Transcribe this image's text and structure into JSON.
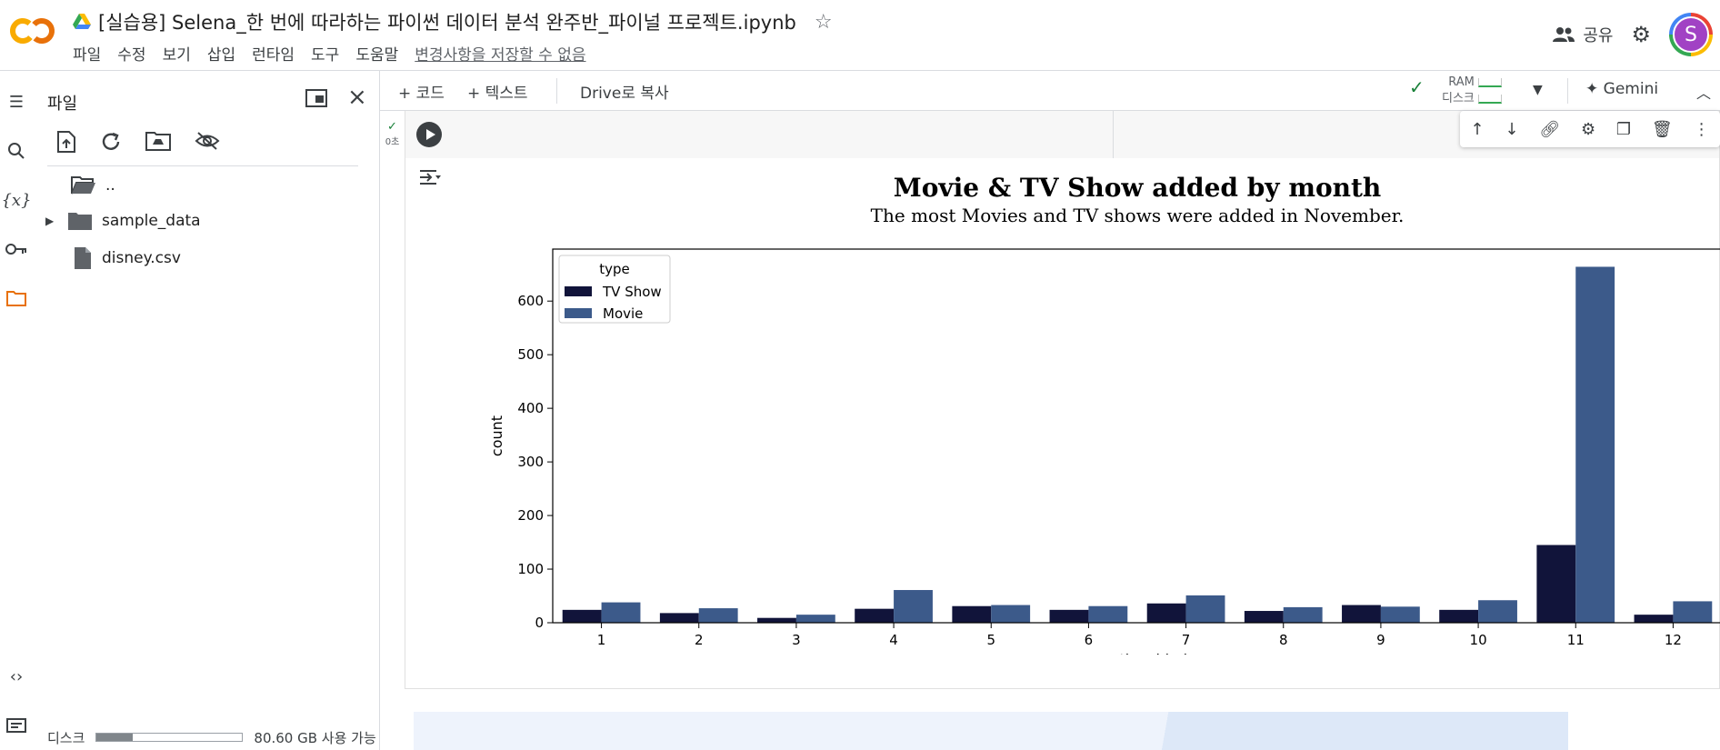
{
  "header": {
    "title": "[실습용] Selena_한 번에 따라하는 파이썬 데이터 분석 완주반_파이널 프로젝트.ipynb",
    "menu": [
      "파일",
      "수정",
      "보기",
      "삽입",
      "런타임",
      "도구",
      "도움말"
    ],
    "unsaved": "변경사항을 저장할 수 없음",
    "share_label": "공유",
    "avatar_letter": "S"
  },
  "files_panel": {
    "title": "파일",
    "items": [
      {
        "label": ".."
      },
      {
        "label": "sample_data"
      },
      {
        "label": "disney.csv"
      }
    ],
    "disk_label": "디스크",
    "disk_used_fraction": 0.25,
    "disk_free": "80.60 GB 사용 가능"
  },
  "toolbar": {
    "add_code": "+ 코드",
    "add_text": "+ 텍스트",
    "copy_drive": "Drive로 복사",
    "ram_label": "RAM",
    "disk_label": "디스크",
    "gemini": "Gemini"
  },
  "cell": {
    "exec_time": "0초"
  },
  "colors": {
    "tv_show": "#11143a",
    "movie": "#3c5a8a",
    "accent": "#e8710a"
  },
  "chart_data": {
    "type": "bar",
    "title": "Movie & TV Show added by month",
    "subtitle": "The most Movies and TV shows were added in November.",
    "xlabel": "month_added",
    "ylabel": "count",
    "categories": [
      "1",
      "2",
      "3",
      "4",
      "5",
      "6",
      "7",
      "8",
      "9",
      "10",
      "11",
      "12"
    ],
    "series": [
      {
        "name": "TV Show",
        "values": [
          24,
          18,
          9,
          26,
          31,
          24,
          36,
          22,
          33,
          24,
          145,
          15
        ]
      },
      {
        "name": "Movie",
        "values": [
          38,
          27,
          15,
          61,
          33,
          31,
          51,
          29,
          30,
          42,
          664,
          40
        ]
      }
    ],
    "yticks": [
      0,
      100,
      200,
      300,
      400,
      500,
      600
    ],
    "ylim": [
      0,
      697
    ],
    "legend_title": "type",
    "legend_position": "top-left",
    "grid": false
  }
}
